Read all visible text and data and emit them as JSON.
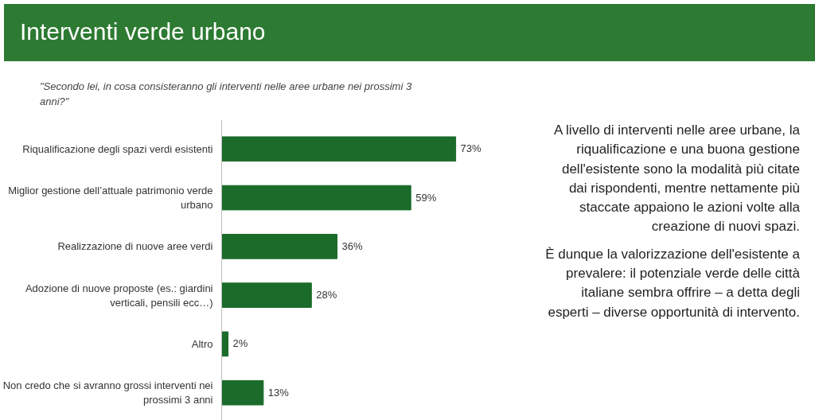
{
  "chart_data": {
    "type": "bar",
    "orientation": "horizontal",
    "title": "Interventi verde urbano",
    "subtitle": "\"Secondo lei, in cosa consisteranno gli interventi nelle aree urbane nei prossimi 3 anni?\"",
    "categories": [
      "Riqualificazione degli spazi verdi esistenti",
      "Miglior gestione dell’attuale patrimonio verde urbano",
      "Realizzazione di nuove aree verdi",
      "Adozione di nuove proposte (es.: giardini verticali, pensili ecc…)",
      "Altro",
      "Non credo che si avranno grossi interventi nei prossimi 3 anni"
    ],
    "values": [
      73,
      59,
      36,
      28,
      2,
      13
    ],
    "value_labels": [
      "73%",
      "59%",
      "36%",
      "28%",
      "2%",
      "13%"
    ],
    "color": "#1b6b2a",
    "grid": false,
    "annotations": [
      "A livello di interventi nelle aree urbane, la riqualificazione e una buona gestione dell'esistente sono la modalità più citate dai rispondenti, mentre nettamente più staccate appaiono le azioni volte alla creazione di nuovi spazi.",
      "È dunque la valorizzazione dell'esistente a prevalere: il potenziale verde delle città italiane sembra offrire – a detta degli esperti – diverse opportunità di intervento."
    ]
  }
}
